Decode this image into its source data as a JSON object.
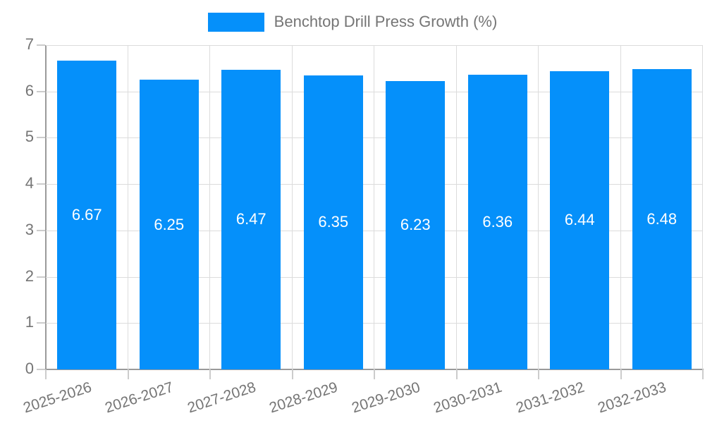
{
  "chart_data": {
    "type": "bar",
    "title": "",
    "legend": {
      "label": "Benchtop Drill Press Growth (%)",
      "position": "top"
    },
    "categories": [
      "2025-2026",
      "2026-2027",
      "2027-2028",
      "2028-2029",
      "2029-2030",
      "2030-2031",
      "2031-2032",
      "2032-2033"
    ],
    "values": [
      6.67,
      6.25,
      6.47,
      6.35,
      6.23,
      6.36,
      6.44,
      6.48
    ],
    "value_label_decimals": 2,
    "xlabel": "",
    "ylabel": "",
    "ylim": [
      0,
      7
    ],
    "yticks": [
      0,
      1,
      2,
      3,
      4,
      5,
      6,
      7
    ],
    "grid": true,
    "colors": {
      "bar": "#0590FA",
      "value_label": "#FFFFFF",
      "axis_text": "#757575",
      "grid_line": "#DCDCDC",
      "tick_line": "#CCCCCC",
      "axis_line": "#9A9A9A",
      "background": "#FFFFFF"
    }
  }
}
